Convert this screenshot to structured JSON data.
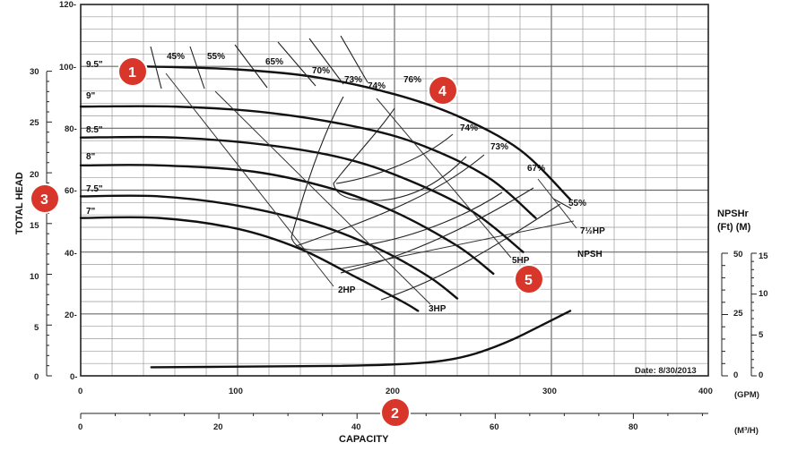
{
  "chart_data": {
    "type": "line",
    "title": "",
    "xlabel": "CAPACITY",
    "ylabel": "TOTAL HEAD",
    "x_unit_gpm": "(GPM)",
    "x_unit_m3h": "(M³/H)",
    "xlim_gpm": [
      0,
      400
    ],
    "ylim_ft": [
      0,
      120
    ],
    "gpm_ticks": [
      "0",
      "100",
      "200",
      "300",
      "400"
    ],
    "m3h_ticks": [
      "0",
      "20",
      "40",
      "60",
      "80"
    ],
    "ft_ticks": [
      "0-",
      "20-",
      "40-",
      "60-",
      "80-",
      "100-",
      "120-"
    ],
    "m_ticks": [
      "0",
      "5",
      "10",
      "15",
      "20",
      "25",
      "30"
    ],
    "npsh_title_1": "NPSHr",
    "npsh_title_2": "(Ft)  (M)",
    "npsh_ft_ticks": [
      "0",
      "25",
      "50"
    ],
    "npsh_m_ticks": [
      "0",
      "5",
      "10",
      "15"
    ],
    "date_label": "Date: 8/30/2013",
    "npsh_label": "NPSH",
    "impeller_curves": [
      {
        "name": "9.5\"",
        "points": [
          [
            40,
            100
          ],
          [
            100,
            99
          ],
          [
            150,
            96.5
          ],
          [
            200,
            91
          ],
          [
            240,
            84
          ],
          [
            280,
            73
          ],
          [
            312,
            57
          ]
        ]
      },
      {
        "name": "9\"",
        "points": [
          [
            0,
            87
          ],
          [
            60,
            87
          ],
          [
            120,
            85
          ],
          [
            180,
            80
          ],
          [
            220,
            74
          ],
          [
            260,
            64
          ],
          [
            290,
            51
          ]
        ]
      },
      {
        "name": "8.5\"",
        "points": [
          [
            0,
            77
          ],
          [
            60,
            77
          ],
          [
            120,
            74.5
          ],
          [
            170,
            70
          ],
          [
            210,
            63
          ],
          [
            250,
            53
          ],
          [
            282,
            40
          ]
        ]
      },
      {
        "name": "8\"",
        "points": [
          [
            0,
            68
          ],
          [
            50,
            68
          ],
          [
            110,
            66
          ],
          [
            160,
            60.5
          ],
          [
            200,
            53
          ],
          [
            240,
            42
          ],
          [
            263,
            33
          ]
        ]
      },
      {
        "name": "7.5\"",
        "points": [
          [
            0,
            58
          ],
          [
            50,
            58
          ],
          [
            100,
            55
          ],
          [
            150,
            49
          ],
          [
            190,
            41
          ],
          [
            222,
            32
          ],
          [
            240,
            25
          ]
        ]
      },
      {
        "name": "7\"",
        "points": [
          [
            0,
            51
          ],
          [
            50,
            51
          ],
          [
            100,
            47.5
          ],
          [
            140,
            41
          ],
          [
            175,
            32
          ],
          [
            205,
            24
          ],
          [
            215,
            21
          ]
        ]
      }
    ],
    "efficiency_labels": [
      "45%",
      "55%",
      "65%",
      "70%",
      "73%",
      "74%",
      "76%",
      "74%",
      "73%",
      "67%",
      "55%"
    ],
    "hp_labels": [
      "2HP",
      "3HP",
      "5HP",
      "7½HP"
    ],
    "npsh_curve": {
      "name": "NPSH",
      "points": [
        [
          45,
          3.5
        ],
        [
          120,
          3.8
        ],
        [
          200,
          4.3
        ],
        [
          240,
          6.5
        ],
        [
          270,
          13
        ],
        [
          295,
          21
        ],
        [
          312,
          26.5
        ]
      ]
    }
  },
  "impeller_labels": [
    "9.5\"",
    "9\"",
    "8.5\"",
    "8\"",
    "7.5\"",
    "7\""
  ],
  "badges": [
    "1",
    "2",
    "3",
    "4",
    "5"
  ]
}
